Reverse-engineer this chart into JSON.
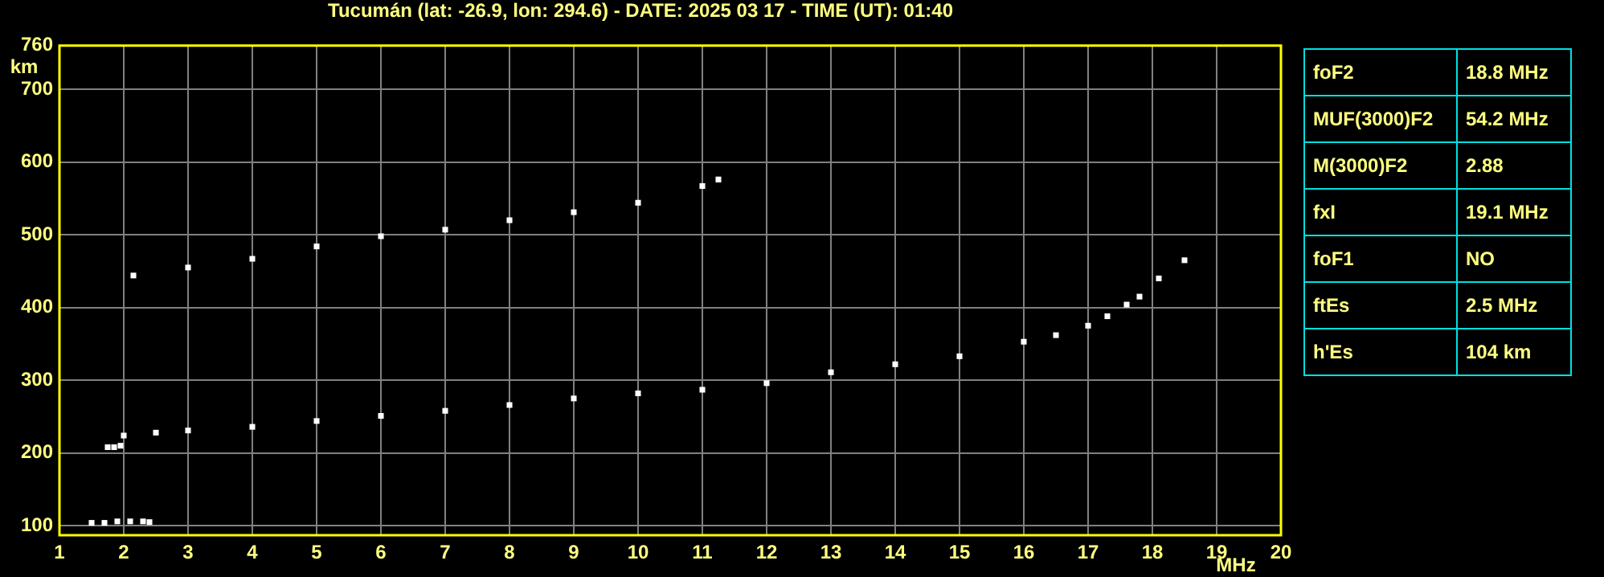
{
  "chart_data": [
    {
      "type": "scatter",
      "title": "Tucumán (lat: -26.9, lon: 294.6) - DATE: 2025 03 17 - TIME (UT): 01:40",
      "xlabel": "MHz",
      "ylabel": "km",
      "xlim": [
        1,
        20
      ],
      "xticks": [
        1,
        2,
        3,
        4,
        5,
        6,
        7,
        8,
        9,
        10,
        11,
        12,
        13,
        14,
        15,
        16,
        17,
        18,
        19,
        20
      ],
      "ylim": [
        87,
        760
      ],
      "yticks": [
        100,
        200,
        300,
        400,
        500,
        600,
        700,
        760
      ],
      "grid": true,
      "legend": false,
      "marker": "square",
      "series": [
        {
          "color": "#ffffff",
          "x": [
            2.0,
            2.5,
            3,
            4,
            5,
            6,
            7,
            8,
            9,
            10,
            11,
            12,
            13,
            14,
            15,
            16,
            16.5,
            17,
            17.3,
            17.6,
            17.8,
            18.1,
            18.5
          ],
          "values": [
            224,
            228,
            231,
            236,
            244,
            251,
            258,
            266,
            275,
            282,
            287,
            296,
            311,
            322,
            333,
            353,
            362,
            375,
            388,
            404,
            415,
            440,
            465
          ]
        },
        {
          "color": "#ffffff",
          "x": [
            1.75,
            1.85,
            1.95
          ],
          "values": [
            208,
            208,
            210
          ]
        },
        {
          "color": "#ffffff",
          "x": [
            2.15,
            3,
            4,
            5,
            6,
            7,
            8,
            9,
            10,
            11,
            11.25
          ],
          "values": [
            444,
            455,
            467,
            484,
            498,
            507,
            520,
            531,
            544,
            567,
            576
          ]
        },
        {
          "color": "#ffffff",
          "x": [
            1.5,
            1.7,
            1.9,
            2.1,
            2.3,
            2.4
          ],
          "values": [
            104,
            104,
            106,
            106,
            106,
            105
          ]
        }
      ]
    },
    {
      "type": "other",
      "annotations": [
        "foF2",
        "18.8 MHz",
        "MUF(3000)F2",
        "54.2 MHz",
        "M(3000)F2",
        "2.88",
        "fxI",
        "19.1 MHz",
        "foF1",
        "NO",
        "ftEs",
        "2.5 MHz",
        "h'Es",
        "104 km"
      ]
    }
  ]
}
